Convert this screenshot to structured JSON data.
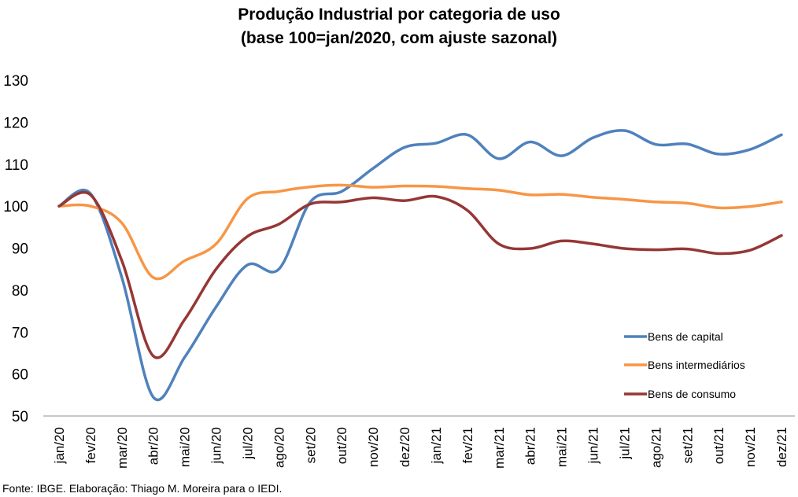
{
  "chart_data": {
    "type": "line",
    "title": "Produção Industrial por categoria de uso",
    "subtitle": "(base 100=jan/2020, com ajuste sazonal)",
    "xlabel": "",
    "ylabel": "",
    "ylim": [
      50,
      130
    ],
    "yticks": [
      50,
      60,
      70,
      80,
      90,
      100,
      110,
      120,
      130
    ],
    "grid": false,
    "legend_position": "bottom-right",
    "smooth": true,
    "categories": [
      "jan/20",
      "fev/20",
      "mar/20",
      "abr/20",
      "mai/20",
      "jun/20",
      "jul/20",
      "ago/20",
      "set/20",
      "out/20",
      "nov/20",
      "dez/20",
      "jan/21",
      "fev/21",
      "mar/21",
      "abr/21",
      "mai/21",
      "jun/21",
      "jul/21",
      "ago/21",
      "set/21",
      "out/21",
      "nov/21",
      "dez/21"
    ],
    "series": [
      {
        "name": "Bens de capital",
        "color": "#4F81BD",
        "values": [
          100,
          103.0,
          83.0,
          54.5,
          64.0,
          76.0,
          86.0,
          85.0,
          101.0,
          103.5,
          109.0,
          114.0,
          115.0,
          117.0,
          111.3,
          115.3,
          112.0,
          116.3,
          118.0,
          114.7,
          114.8,
          112.4,
          113.5,
          117.0
        ]
      },
      {
        "name": "Bens intermediários",
        "color": "#F79646",
        "values": [
          100,
          100.0,
          96.0,
          83.0,
          87.0,
          91.0,
          101.8,
          103.5,
          104.6,
          105.0,
          104.5,
          104.8,
          104.7,
          104.2,
          103.8,
          102.7,
          102.8,
          102.1,
          101.6,
          101.0,
          100.7,
          99.6,
          99.9,
          101.0
        ]
      },
      {
        "name": "Bens de consumo",
        "color": "#953735",
        "values": [
          100,
          102.7,
          87.0,
          64.3,
          73.0,
          85.0,
          92.8,
          95.7,
          100.5,
          101.0,
          102.0,
          101.3,
          102.3,
          99.0,
          91.0,
          89.9,
          91.7,
          91.0,
          89.9,
          89.6,
          89.8,
          88.7,
          89.5,
          93.0
        ]
      }
    ]
  },
  "source_note": "Fonte: IBGE. Elaboração: Thiago M. Moreira para o IEDI."
}
